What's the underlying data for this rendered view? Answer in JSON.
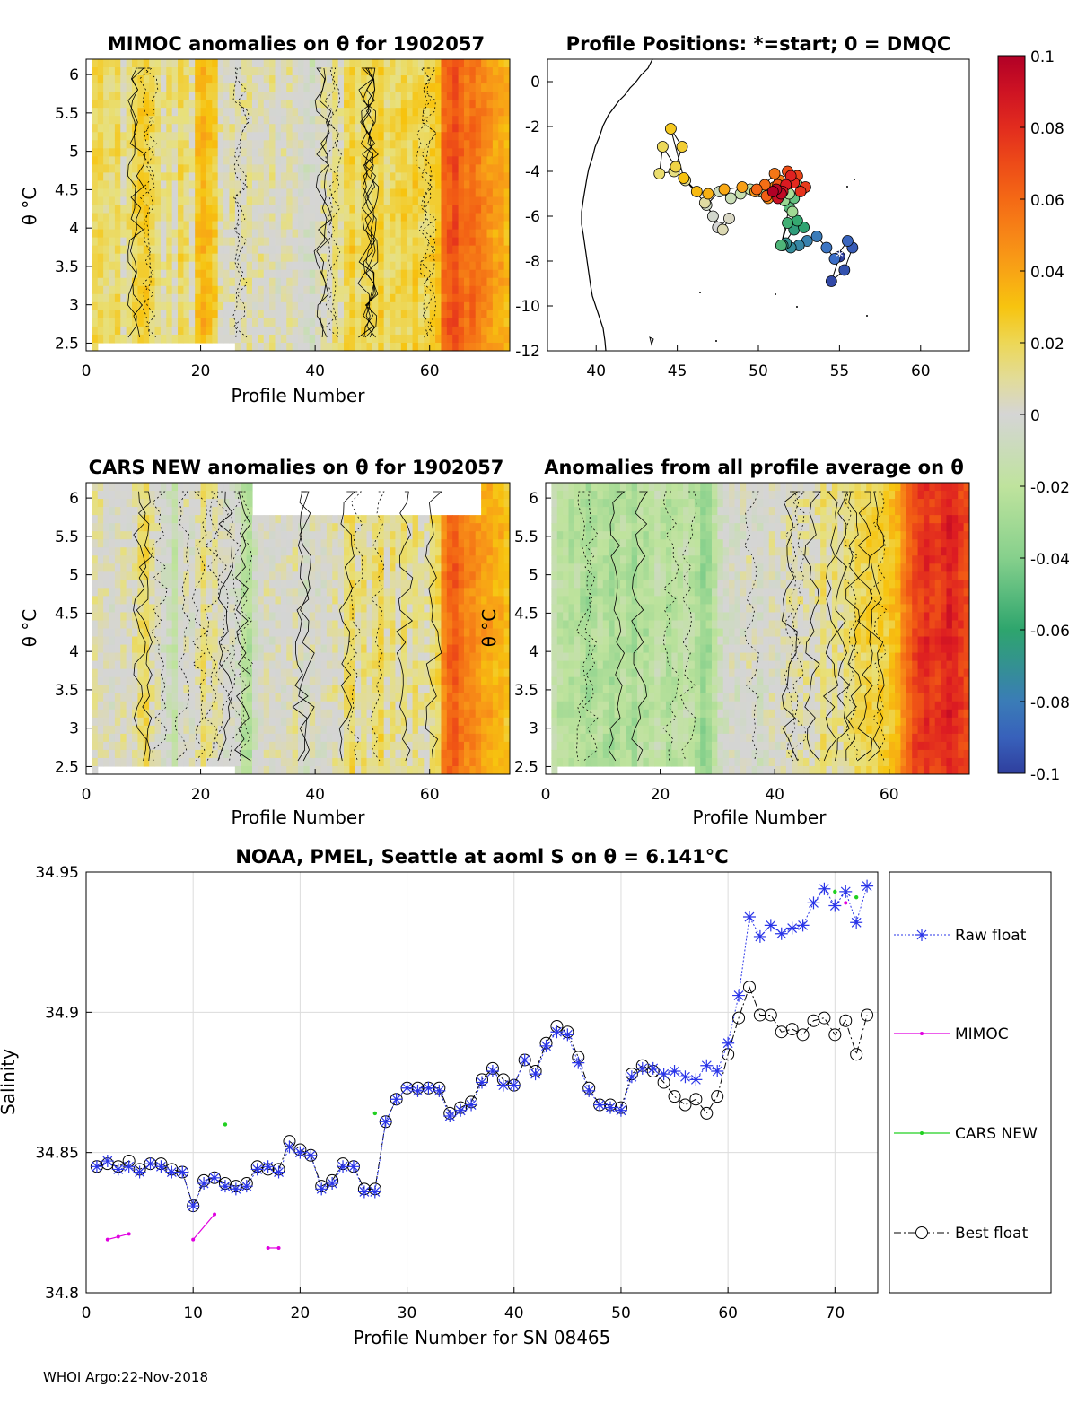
{
  "footer": "WHOI Argo:22-Nov-2018",
  "colorbar": {
    "ticks": [
      "0.1",
      "0.08",
      "0.06",
      "0.04",
      "0.02",
      "0",
      "-0.02",
      "-0.04",
      "-0.06",
      "-0.08",
      "-0.1"
    ],
    "values": [
      0.1,
      0.08,
      0.06,
      0.04,
      0.02,
      0,
      -0.02,
      -0.04,
      -0.06,
      -0.08,
      -0.1
    ],
    "colors": [
      "#b10026",
      "#dd1c22",
      "#f25b14",
      "#f89418",
      "#f7c40f",
      "#e8e07a",
      "#d5d5d5",
      "#bfe39d",
      "#86d08c",
      "#2ea56d",
      "#3d72c9",
      "#2f3f9e"
    ]
  },
  "panels": {
    "mimoc": {
      "title": "MIMOC anomalies on θ  for 1902057",
      "xlabel": "Profile Number",
      "ylabel": "θ °C",
      "xticks": [
        "0",
        "20",
        "40",
        "60"
      ],
      "yticks": [
        "6",
        "5.5",
        "5",
        "4.5",
        "4",
        "3.5",
        "3",
        "2.5"
      ]
    },
    "positions": {
      "title": "Profile Positions: *=start; 0 = DMQC",
      "xticks": [
        "40",
        "45",
        "50",
        "55",
        "60"
      ],
      "yticks": [
        "0",
        "-2",
        "-4",
        "-6",
        "-8",
        "-10",
        "-12"
      ]
    },
    "cars": {
      "title": "CARS NEW anomalies on θ for 1902057",
      "xlabel": "Profile Number",
      "ylabel": "θ °C",
      "xticks": [
        "0",
        "20",
        "40",
        "60"
      ],
      "yticks": [
        "6",
        "5.5",
        "5",
        "4.5",
        "4",
        "3.5",
        "3",
        "2.5"
      ]
    },
    "allavg": {
      "title": "Anomalies from all profile average on θ",
      "xlabel": "Profile Number",
      "ylabel": "θ °C",
      "xticks": [
        "0",
        "20",
        "40",
        "60"
      ],
      "yticks": [
        "6",
        "5.5",
        "5",
        "4.5",
        "4",
        "3.5",
        "3",
        "2.5"
      ]
    }
  },
  "chart_data": [
    {
      "type": "heatmap",
      "title": "MIMOC anomalies on θ  for 1902057",
      "xlabel": "Profile Number",
      "ylabel": "θ °C",
      "xlim": [
        0,
        74
      ],
      "ylim": [
        2.4,
        6.2
      ],
      "colormap_range": [
        -0.1,
        0.1
      ],
      "column_anomaly_estimates": [
        0.02,
        0.02,
        0.015,
        0.015,
        0.02,
        0.01,
        0.015,
        0.02,
        0.025,
        0.025,
        0.02,
        0.015,
        0.01,
        0.015,
        0.01,
        0.02,
        0.015,
        0.01,
        0.03,
        0.035,
        0.03,
        0.025,
        0.01,
        0.005,
        0.01,
        0.005,
        0.01,
        0.01,
        0.005,
        0.01,
        0.005,
        0.01,
        0.0,
        0.005,
        0.01,
        0.005,
        0.0,
        -0.005,
        -0.01,
        0.005,
        0.01,
        0.005,
        0.015,
        0.01,
        0.02,
        0.025,
        0.015,
        0.02,
        0.02,
        0.02,
        0.025,
        0.015,
        0.02,
        0.02,
        0.025,
        0.02,
        0.025,
        0.02,
        0.02,
        0.025,
        0.03,
        0.06,
        0.065,
        0.07,
        0.06,
        0.055,
        0.06,
        0.055,
        0.05,
        0.045,
        0.04,
        0.04,
        0.035
      ]
    },
    {
      "type": "scatter",
      "title": "Profile Positions: *=start; 0 = DMQC",
      "xlim": [
        37,
        63
      ],
      "ylim": [
        -12,
        1
      ],
      "lon": [
        55.0,
        54.5,
        55.3,
        55.8,
        55.5,
        54.7,
        54.2,
        53.6,
        53.0,
        52.5,
        52.0,
        51.7,
        51.5,
        52.2,
        52.8,
        52.4,
        51.8,
        51.4,
        51.9,
        52.2,
        52.7,
        52.3,
        51.5,
        51.0,
        51.6,
        52.1,
        51.9,
        51.3,
        50.6,
        50.1,
        49.5,
        48.9,
        48.3,
        47.6,
        46.8,
        47.2,
        47.5,
        48.2,
        47.8,
        46.7,
        45.5,
        44.8,
        43.9,
        44.1,
        44.9,
        45.3,
        44.6,
        45.4,
        46.2,
        46.9,
        47.9,
        49.0,
        49.8,
        50.6,
        51.0,
        51.3,
        51.0,
        50.4,
        49.9,
        50.5,
        51.2,
        51.8,
        52.4,
        52.9,
        52.6,
        52.2,
        52.0,
        51.7,
        51.5,
        51.2,
        51.4,
        51.1,
        50.9
      ],
      "lat": [
        -7.8,
        -8.9,
        -8.4,
        -7.4,
        -7.1,
        -7.9,
        -7.4,
        -6.9,
        -7.1,
        -7.3,
        -7.4,
        -7.2,
        -7.3,
        -6.6,
        -6.5,
        -6.2,
        -6.3,
        -7.3,
        -5.6,
        -5.2,
        -4.8,
        -4.5,
        -4.6,
        -4.9,
        -5.3,
        -5.8,
        -5.0,
        -4.7,
        -5.1,
        -4.9,
        -4.8,
        -5.0,
        -5.2,
        -4.9,
        -5.5,
        -6.0,
        -6.5,
        -6.1,
        -6.6,
        -5.4,
        -4.4,
        -4.0,
        -4.1,
        -2.9,
        -3.8,
        -2.9,
        -2.1,
        -4.3,
        -4.9,
        -5.0,
        -4.8,
        -4.7,
        -4.9,
        -5.2,
        -4.7,
        -4.4,
        -4.1,
        -4.6,
        -4.8,
        -5.1,
        -4.6,
        -4.0,
        -4.2,
        -4.7,
        -4.9,
        -4.5,
        -4.2,
        -4.6,
        -4.9,
        -5.2,
        -5.0,
        -4.8,
        -4.9
      ]
    },
    {
      "type": "heatmap",
      "title": "CARS NEW anomalies on θ for 1902057",
      "xlabel": "Profile Number",
      "ylabel": "θ °C",
      "xlim": [
        0,
        74
      ],
      "ylim": [
        2.4,
        6.2
      ],
      "colormap_range": [
        -0.1,
        0.1
      ],
      "column_anomaly_estimates": [
        0.01,
        0.01,
        0.005,
        0.0,
        0.005,
        0.01,
        0.005,
        0.01,
        0.015,
        0.02,
        0.01,
        0.005,
        -0.005,
        -0.01,
        -0.015,
        0.0,
        0.005,
        0.0,
        0.01,
        0.015,
        0.01,
        0.01,
        0.005,
        0.0,
        0.0,
        -0.005,
        -0.02,
        -0.025,
        -0.01,
        0.0,
        0.005,
        0.0,
        0.005,
        0.0,
        0.005,
        0.01,
        0.0,
        -0.005,
        0.005,
        0.0,
        0.0,
        0.005,
        0.01,
        0.005,
        0.015,
        0.02,
        0.01,
        0.015,
        0.01,
        0.015,
        0.02,
        0.01,
        0.015,
        0.01,
        0.015,
        0.01,
        0.015,
        0.01,
        0.01,
        0.015,
        0.02,
        0.05,
        0.06,
        0.065,
        0.055,
        0.05,
        0.05,
        0.045,
        0.04,
        0.04,
        0.035,
        0.035,
        0.03
      ]
    },
    {
      "type": "heatmap",
      "title": "Anomalies from all profile average on θ",
      "xlabel": "Profile Number",
      "ylabel": "θ °C",
      "xlim": [
        0,
        74
      ],
      "ylim": [
        2.4,
        6.2
      ],
      "colormap_range": [
        -0.1,
        0.1
      ],
      "column_anomaly_estimates": [
        -0.015,
        -0.02,
        -0.02,
        -0.025,
        -0.02,
        -0.025,
        -0.03,
        -0.025,
        -0.02,
        -0.025,
        -0.03,
        -0.025,
        -0.02,
        -0.025,
        -0.03,
        -0.02,
        -0.025,
        -0.02,
        -0.015,
        -0.02,
        -0.025,
        -0.02,
        -0.02,
        -0.015,
        -0.02,
        -0.025,
        -0.035,
        -0.03,
        -0.02,
        -0.01,
        -0.005,
        0.0,
        -0.005,
        0.0,
        0.005,
        0.0,
        -0.005,
        0.0,
        0.005,
        0.0,
        0.005,
        0.01,
        0.005,
        0.01,
        0.01,
        0.005,
        0.01,
        0.015,
        0.01,
        0.015,
        0.01,
        0.015,
        0.015,
        0.02,
        0.02,
        0.025,
        0.02,
        0.025,
        0.025,
        0.03,
        0.035,
        0.05,
        0.06,
        0.07,
        0.075,
        0.08,
        0.075,
        0.075,
        0.08,
        0.085,
        0.08,
        0.075,
        0.07
      ]
    },
    {
      "type": "line",
      "title": "NOAA, PMEL, Seattle at aoml S on θ = 6.141°C",
      "xlabel": "Profile Number for SN 08465",
      "ylabel": "Salinity",
      "xlim": [
        0,
        74
      ],
      "ylim": [
        34.8,
        34.95
      ],
      "xticks": [
        "0",
        "10",
        "20",
        "30",
        "40",
        "50",
        "60",
        "70"
      ],
      "yticks": [
        "34.95",
        "34.9",
        "34.85",
        "34.8"
      ],
      "series": [
        {
          "name": "Raw float",
          "x": [
            1,
            2,
            3,
            4,
            5,
            6,
            7,
            8,
            9,
            10,
            11,
            12,
            13,
            14,
            15,
            16,
            17,
            18,
            19,
            20,
            21,
            22,
            23,
            24,
            25,
            26,
            27,
            28,
            29,
            30,
            31,
            32,
            33,
            34,
            35,
            36,
            37,
            38,
            39,
            40,
            41,
            42,
            43,
            44,
            45,
            46,
            47,
            48,
            49,
            50,
            51,
            52,
            53,
            54,
            55,
            56,
            57,
            58,
            59,
            60,
            61,
            62,
            63,
            64,
            65,
            66,
            67,
            68,
            69,
            70,
            71,
            72,
            73
          ],
          "values": [
            34.845,
            34.847,
            34.844,
            34.845,
            34.843,
            34.846,
            34.845,
            34.843,
            34.843,
            34.831,
            34.839,
            34.841,
            34.838,
            34.837,
            34.838,
            34.844,
            34.845,
            34.843,
            34.852,
            34.85,
            34.849,
            34.837,
            34.839,
            34.845,
            34.845,
            34.836,
            34.836,
            34.861,
            34.869,
            34.873,
            34.872,
            34.873,
            34.872,
            34.863,
            34.865,
            34.867,
            34.875,
            34.879,
            34.874,
            34.874,
            34.883,
            34.878,
            34.888,
            34.893,
            34.892,
            34.882,
            34.872,
            34.867,
            34.866,
            34.865,
            34.877,
            34.88,
            34.88,
            34.878,
            34.879,
            34.877,
            34.876,
            34.881,
            34.879,
            34.889,
            34.906,
            34.934,
            34.927,
            34.931,
            34.928,
            34.93,
            34.931,
            34.939,
            34.944,
            34.938,
            34.943,
            34.932,
            34.945
          ]
        },
        {
          "name": "MIMOC",
          "segments": [
            {
              "x": [
                2,
                3,
                4
              ],
              "values": [
                34.819,
                34.82,
                34.821
              ]
            },
            {
              "x": [
                10,
                12
              ],
              "values": [
                34.819,
                34.828
              ]
            },
            {
              "x": [
                17,
                18
              ],
              "values": [
                34.816,
                34.816
              ]
            },
            {
              "x": [
                71
              ],
              "values": [
                34.939
              ]
            }
          ]
        },
        {
          "name": "CARS NEW",
          "points": {
            "x": [
              13,
              27,
              70,
              72
            ],
            "values": [
              34.86,
              34.864,
              34.943,
              34.941
            ]
          }
        },
        {
          "name": "Best float",
          "x": [
            1,
            2,
            3,
            4,
            5,
            6,
            7,
            8,
            9,
            10,
            11,
            12,
            13,
            14,
            15,
            16,
            17,
            18,
            19,
            20,
            21,
            22,
            23,
            24,
            25,
            26,
            27,
            28,
            29,
            30,
            31,
            32,
            33,
            34,
            35,
            36,
            37,
            38,
            39,
            40,
            41,
            42,
            43,
            44,
            45,
            46,
            47,
            48,
            49,
            50,
            51,
            52,
            53,
            54,
            55,
            56,
            57,
            58,
            59,
            60,
            61,
            62,
            63,
            64,
            65,
            66,
            67,
            68,
            69,
            70,
            71,
            72,
            73
          ],
          "values": [
            34.845,
            34.846,
            34.845,
            34.847,
            34.844,
            34.846,
            34.846,
            34.844,
            34.843,
            34.831,
            34.84,
            34.841,
            34.839,
            34.838,
            34.839,
            34.845,
            34.844,
            34.844,
            34.854,
            34.851,
            34.849,
            34.838,
            34.84,
            34.846,
            34.845,
            34.837,
            34.837,
            34.861,
            34.869,
            34.873,
            34.873,
            34.873,
            34.873,
            34.864,
            34.866,
            34.868,
            34.876,
            34.88,
            34.876,
            34.874,
            34.883,
            34.879,
            34.889,
            34.895,
            34.893,
            34.884,
            34.873,
            34.867,
            34.867,
            34.866,
            34.878,
            34.881,
            34.879,
            34.875,
            34.87,
            34.867,
            34.869,
            34.864,
            34.87,
            34.885,
            34.898,
            34.909,
            34.899,
            34.899,
            34.893,
            34.894,
            34.892,
            34.897,
            34.898,
            34.892,
            34.897,
            34.885,
            34.899
          ]
        }
      ],
      "legend": [
        "Raw float",
        "MIMOC",
        "CARS NEW",
        "Best float"
      ],
      "grid": true
    }
  ]
}
